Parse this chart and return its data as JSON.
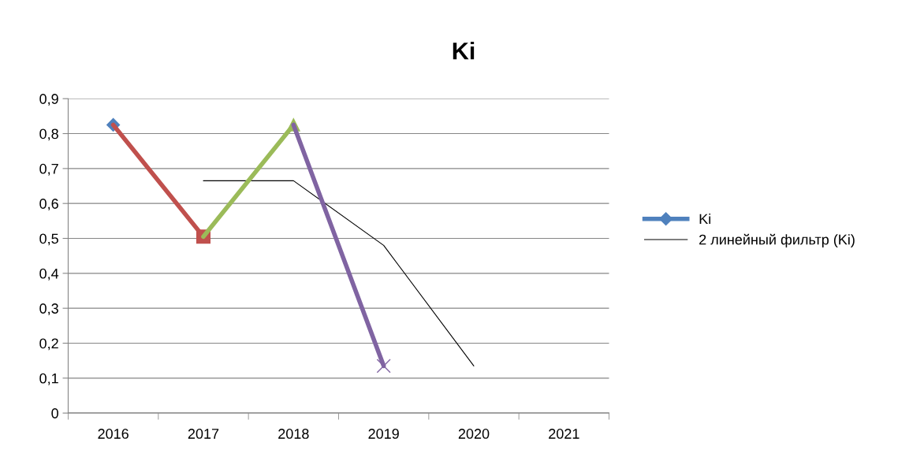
{
  "chart_data": {
    "type": "line",
    "title": "Ki",
    "categories": [
      "2016",
      "2017",
      "2018",
      "2019",
      "2020",
      "2021"
    ],
    "series": [
      {
        "name": "Ki",
        "color": "#4f81bd",
        "values": [
          0.825,
          null,
          null,
          null,
          null,
          null
        ],
        "marker": "diamond"
      },
      {
        "color": "#c0504d",
        "values": [
          0.825,
          0.505,
          null,
          null,
          null,
          null
        ],
        "marker": "none"
      },
      {
        "color": "#c0504d",
        "values": [
          null,
          0.505,
          null,
          null,
          null,
          null
        ],
        "marker": "square"
      },
      {
        "color": "#9bbb59",
        "values": [
          null,
          0.505,
          0.825,
          null,
          null,
          null
        ],
        "marker": "none"
      },
      {
        "color": "#9bbb59",
        "values": [
          null,
          null,
          0.825,
          null,
          null,
          null
        ],
        "marker": "triangle"
      },
      {
        "color": "#8064a2",
        "values": [
          null,
          null,
          0.825,
          0.135,
          null,
          null
        ],
        "marker": "none"
      },
      {
        "color": "#8064a2",
        "values": [
          null,
          null,
          null,
          0.135,
          null,
          null
        ],
        "marker": "cross"
      },
      {
        "name": "2 линейный фильтр (Ki)",
        "color": "#000000",
        "values": [
          null,
          0.665,
          0.665,
          0.48,
          0.135,
          null
        ],
        "marker": "none"
      }
    ],
    "ylim": [
      0,
      0.9
    ],
    "yticks": [
      0,
      {
        "value": 0.1,
        "label": "0,1"
      },
      {
        "value": 0.2,
        "label": "0,2"
      },
      {
        "value": 0.3,
        "label": "0,3"
      },
      {
        "value": 0.4,
        "label": "0,4"
      },
      {
        "value": 0.5,
        "label": "0,5"
      },
      {
        "value": 0.6,
        "label": "0,6"
      },
      {
        "value": 0.7,
        "label": "0,7"
      },
      {
        "value": 0.8,
        "label": "0,8"
      },
      {
        "value": 0.9,
        "label": "0,9"
      }
    ],
    "grid": "y",
    "legend": "right"
  }
}
